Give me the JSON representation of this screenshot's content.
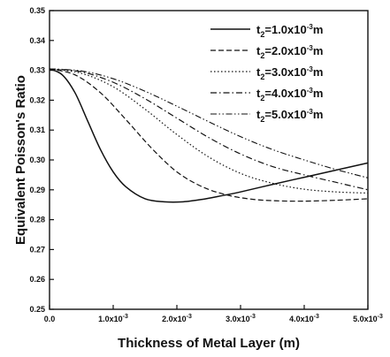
{
  "chart_data": {
    "type": "line",
    "xlabel": "Thickness of Metal Layer (m)",
    "ylabel": "Equivalent Poisson's Ratio",
    "xlim": [
      0,
      0.005
    ],
    "ylim": [
      0.25,
      0.35
    ],
    "x_ticks": [
      {
        "value": 0,
        "mantissa": "0.0",
        "exp": ""
      },
      {
        "value": 0.001,
        "mantissa": "1.0x10",
        "exp": "-3"
      },
      {
        "value": 0.002,
        "mantissa": "2.0x10",
        "exp": "-3"
      },
      {
        "value": 0.003,
        "mantissa": "3.0x10",
        "exp": "-3"
      },
      {
        "value": 0.004,
        "mantissa": "4.0x10",
        "exp": "-3"
      },
      {
        "value": 0.005,
        "mantissa": "5.0x10",
        "exp": "-3"
      }
    ],
    "y_ticks": [
      {
        "value": 0.25,
        "label": "0.25"
      },
      {
        "value": 0.26,
        "label": "0.26"
      },
      {
        "value": 0.27,
        "label": "0.27"
      },
      {
        "value": 0.28,
        "label": "0.28"
      },
      {
        "value": 0.29,
        "label": "0.29"
      },
      {
        "value": 0.3,
        "label": "0.30"
      },
      {
        "value": 0.31,
        "label": "0.31"
      },
      {
        "value": 0.32,
        "label": "0.32"
      },
      {
        "value": 0.33,
        "label": "0.33"
      },
      {
        "value": 0.34,
        "label": "0.34"
      },
      {
        "value": 0.35,
        "label": "0.35"
      }
    ],
    "grid": false,
    "legend_position": "top-right",
    "series": [
      {
        "label_pre": "t",
        "label_sub": "2",
        "label_mid": "=1.0x10",
        "label_sup": "-3",
        "label_post": "m",
        "dash": "solid",
        "x": [
          0,
          0.0002,
          0.0004,
          0.0006,
          0.0008,
          0.001,
          0.0012,
          0.0015,
          0.0018,
          0.0021,
          0.0024,
          0.0027,
          0.003,
          0.0035,
          0.004,
          0.0045,
          0.005
        ],
        "y": [
          0.3305,
          0.3285,
          0.3225,
          0.313,
          0.3035,
          0.296,
          0.291,
          0.287,
          0.286,
          0.286,
          0.2868,
          0.288,
          0.2893,
          0.2918,
          0.2942,
          0.2966,
          0.299
        ]
      },
      {
        "label_pre": "t",
        "label_sub": "2",
        "label_mid": "=2.0x10",
        "label_sup": "-3",
        "label_post": "m",
        "dash": "dashed",
        "x": [
          0,
          0.0004,
          0.0008,
          0.0012,
          0.0016,
          0.002,
          0.0024,
          0.0028,
          0.0032,
          0.0036,
          0.004,
          0.0045,
          0.005
        ],
        "y": [
          0.3305,
          0.3285,
          0.3225,
          0.3135,
          0.304,
          0.296,
          0.291,
          0.2882,
          0.2868,
          0.2863,
          0.2862,
          0.2865,
          0.287
        ]
      },
      {
        "label_pre": "t",
        "label_sub": "2",
        "label_mid": "=3.0x10",
        "label_sup": "-3",
        "label_post": "m",
        "dash": "dotted",
        "x": [
          0,
          0.0005,
          0.001,
          0.0015,
          0.002,
          0.0025,
          0.003,
          0.0035,
          0.004,
          0.0045,
          0.005
        ],
        "y": [
          0.3305,
          0.329,
          0.3245,
          0.317,
          0.3085,
          0.301,
          0.2955,
          0.2922,
          0.2902,
          0.2893,
          0.2889
        ]
      },
      {
        "label_pre": "t",
        "label_sub": "2",
        "label_mid": "=4.0x10",
        "label_sup": "-3",
        "label_post": "m",
        "dash": "dashdot",
        "x": [
          0,
          0.0005,
          0.001,
          0.0015,
          0.002,
          0.0025,
          0.003,
          0.0035,
          0.004,
          0.0045,
          0.005
        ],
        "y": [
          0.3305,
          0.3295,
          0.326,
          0.3205,
          0.314,
          0.3075,
          0.302,
          0.2978,
          0.295,
          0.2925,
          0.29
        ]
      },
      {
        "label_pre": "t",
        "label_sub": "2",
        "label_mid": "=5.0x10",
        "label_sup": "-3",
        "label_post": "m",
        "dash": "dashdotdot",
        "x": [
          0,
          0.0005,
          0.001,
          0.0015,
          0.002,
          0.0025,
          0.003,
          0.0035,
          0.004,
          0.0045,
          0.005
        ],
        "y": [
          0.3305,
          0.3298,
          0.3272,
          0.323,
          0.318,
          0.3128,
          0.3078,
          0.3035,
          0.3,
          0.2968,
          0.294
        ]
      }
    ]
  }
}
